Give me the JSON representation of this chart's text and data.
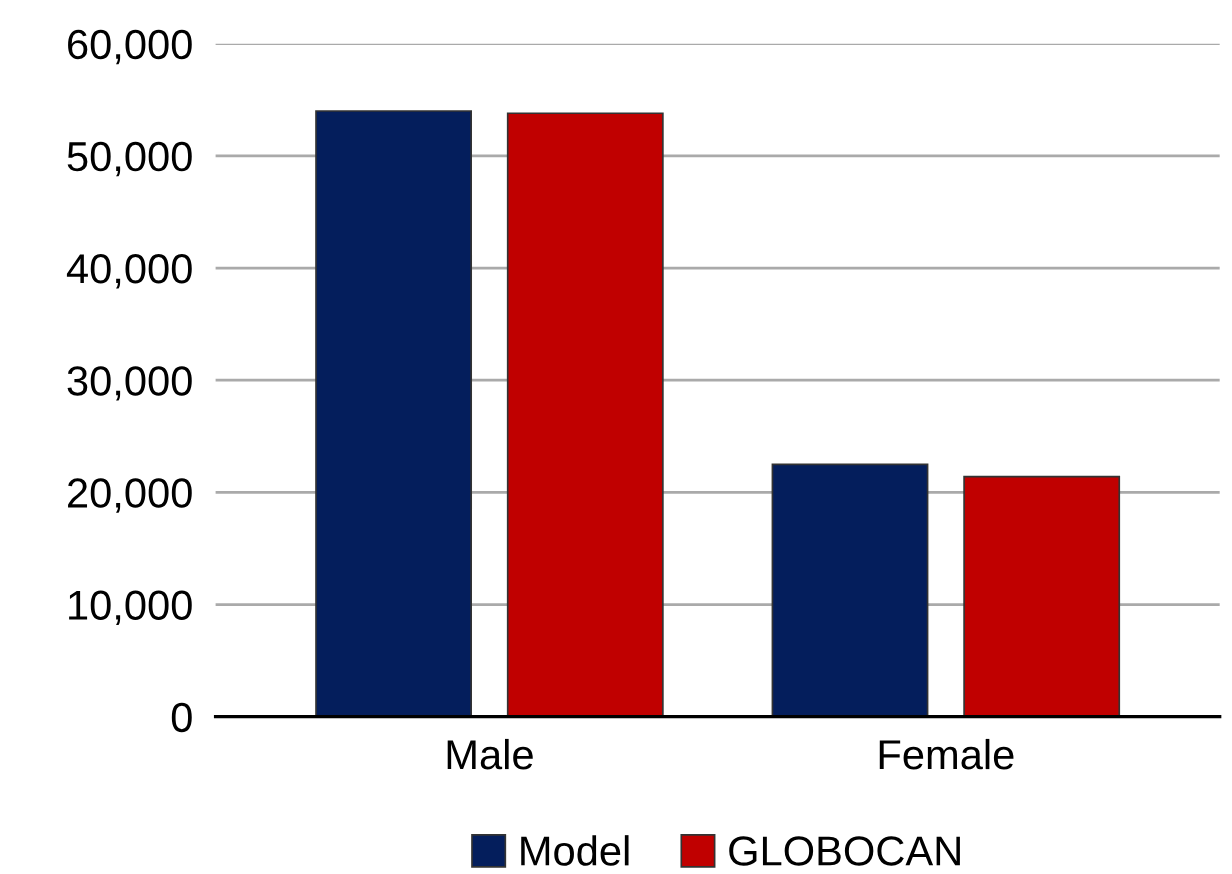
{
  "chart_data": {
    "type": "bar",
    "categories": [
      "Male",
      "Female"
    ],
    "series": [
      {
        "name": "Model",
        "color": "#041e5c",
        "values": [
          54000,
          22500
        ]
      },
      {
        "name": "GLOBOCAN",
        "color": "#c00000",
        "values": [
          53800,
          21400
        ]
      }
    ],
    "ylim": [
      0,
      60000
    ],
    "yticks": [
      {
        "value": 0,
        "label": "0"
      },
      {
        "value": 10000,
        "label": "10,000"
      },
      {
        "value": 20000,
        "label": "20,000"
      },
      {
        "value": 30000,
        "label": "30,000"
      },
      {
        "value": 40000,
        "label": "40,000"
      },
      {
        "value": 50000,
        "label": "50,000"
      },
      {
        "value": 60000,
        "label": "60,000"
      }
    ],
    "grid": "y",
    "legend": "bottom"
  }
}
